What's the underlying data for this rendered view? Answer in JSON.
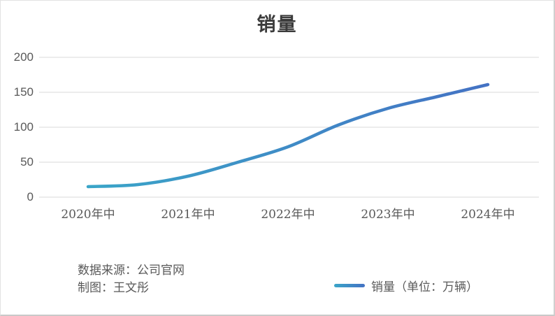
{
  "title": "销量",
  "footer": {
    "source_line": "数据来源：公司官网",
    "credit_line": "制图：王文彤"
  },
  "legend": {
    "label": "销量（单位：万辆）"
  },
  "colors": {
    "gridline": "#d9d9d9",
    "axis_label": "#595959",
    "title_text": "#3b3b3b",
    "line_gradient_start": "#3AA5C8",
    "line_gradient_end": "#4472C4"
  },
  "chart_data": {
    "type": "line",
    "title": "销量",
    "smooth": true,
    "grid": "horizontal-only",
    "legend_position": "bottom",
    "x_tick_labels": [
      "2020年中",
      "2021年中",
      "2022年中",
      "2023年中",
      "2024年中"
    ],
    "x_tick_values": [
      2020.5,
      2021.5,
      2022.5,
      2023.5,
      2024.5
    ],
    "y_ticks": [
      0,
      50,
      100,
      150,
      200
    ],
    "ylim": [
      0,
      200
    ],
    "xlim": [
      2020.5,
      2024.5
    ],
    "series": [
      {
        "name": "销量（单位：万辆）",
        "unit": "万辆",
        "x": [
          2020.5,
          2021.0,
          2021.5,
          2022.0,
          2022.5,
          2023.0,
          2023.5,
          2024.0,
          2024.5
        ],
        "values": [
          15,
          18,
          30,
          50,
          72,
          103,
          127,
          144,
          161
        ]
      }
    ]
  }
}
